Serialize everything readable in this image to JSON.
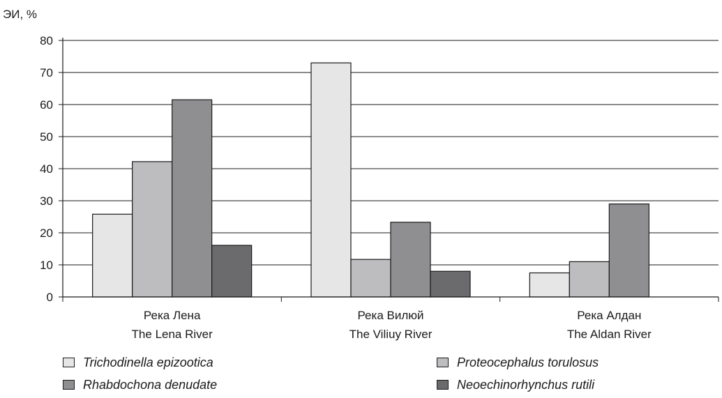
{
  "chart_data": {
    "type": "bar",
    "ylabel": "ЭИ, %",
    "ylim": [
      0,
      80
    ],
    "yticks": [
      0,
      10,
      20,
      30,
      40,
      50,
      60,
      70,
      80
    ],
    "grid": true,
    "legend_position": "bottom",
    "categories": [
      {
        "line1": "Река Лена",
        "line2": "The Lena River"
      },
      {
        "line1": "Река Вилюй",
        "line2": "The Viliuy River"
      },
      {
        "line1": "Река Алдан",
        "line2": "The Aldan River"
      }
    ],
    "series": [
      {
        "name": "Trichodinella epizootica",
        "color": "#e6e6e6",
        "values": [
          25.8,
          73.0,
          7.5
        ]
      },
      {
        "name": "Proteocephalus torulosus",
        "color": "#bdbdbf",
        "values": [
          42.2,
          11.7,
          11.0
        ]
      },
      {
        "name": "Rhabdochona denudate",
        "color": "#8f8f92",
        "values": [
          61.5,
          23.3,
          29.0
        ]
      },
      {
        "name": "Neoechinorhynchus rutili",
        "color": "#6b6b6e",
        "values": [
          16.1,
          8.0,
          null
        ]
      }
    ]
  }
}
